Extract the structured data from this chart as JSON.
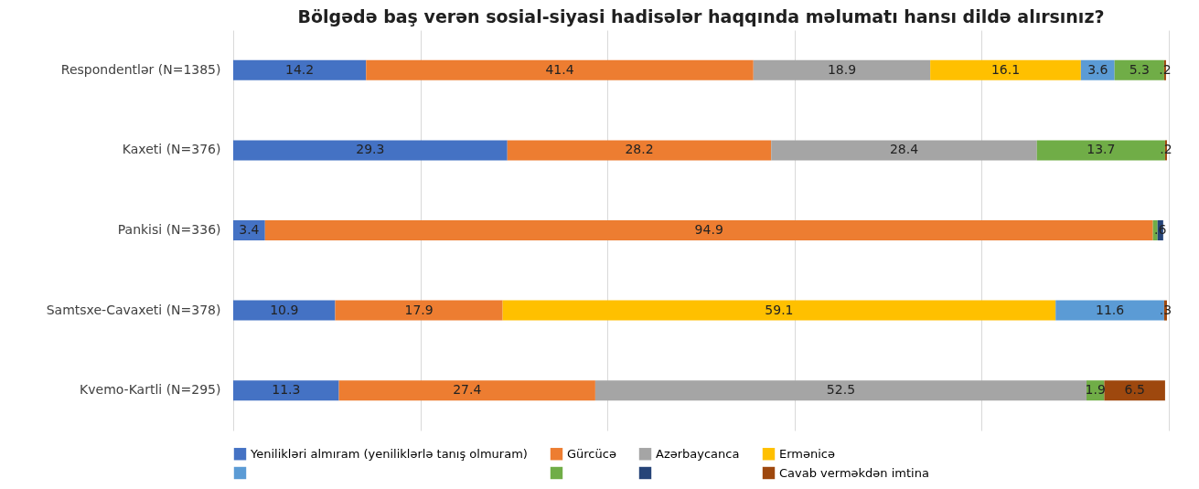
{
  "chart_data": {
    "type": "bar",
    "orientation": "horizontal",
    "stacked": true,
    "title": "Bölgədə baş verən sosial-siyasi hadisələr haqqında məlumatı hansı dildə alırsınız?",
    "categories": [
      "Respondentlər (N=1385)",
      "Kaxeti (N=376)",
      "Pankisi (N=336)",
      "Samtsxe-Cavaxeti (N=378)",
      "Kvemo-Kartli (N=295)"
    ],
    "xlim": [
      0,
      100
    ],
    "xticks": [
      {
        "value": 0,
        "label": null
      },
      {
        "value": 20,
        "label": null
      },
      {
        "value": 40,
        "label": null
      },
      {
        "value": 60,
        "label": null
      },
      {
        "value": 80,
        "label": null
      },
      {
        "value": 100,
        "label": null
      }
    ],
    "tick_labels": "y",
    "grid": "x",
    "legend": "bottom left",
    "series": [
      {
        "name": "Yenilikləri almıram (yeniliklərlə tanış olmuram)",
        "color": "#4472c4",
        "values": [
          14.2,
          29.3,
          3.4,
          10.9,
          11.3
        ],
        "value_labels": [
          "14.2",
          "29.3",
          "3.4",
          "10.9",
          "11.3"
        ]
      },
      {
        "name": "Gürcücə",
        "color": "#ed7d31",
        "values": [
          41.4,
          28.2,
          94.9,
          17.9,
          27.4
        ],
        "value_labels": [
          "41.4",
          "28.2",
          "94.9",
          "17.9",
          "27.4"
        ]
      },
      {
        "name": "Azərbaycanca",
        "color": "#a5a5a5",
        "values": [
          18.9,
          28.4,
          null,
          null,
          52.5
        ],
        "value_labels": [
          "18.9",
          "28.4",
          null,
          null,
          "52.5"
        ]
      },
      {
        "name": "Ermənicə",
        "color": "#ffc000",
        "values": [
          16.1,
          null,
          null,
          59.1,
          null
        ],
        "value_labels": [
          "16.1",
          null,
          null,
          "59.1",
          null
        ]
      },
      {
        "color": "#5b9bd5",
        "values": [
          3.6,
          null,
          null,
          11.6,
          null
        ],
        "value_labels": [
          "3.6",
          null,
          null,
          "11.6",
          null
        ]
      },
      {
        "color": "#70ad47",
        "values": [
          5.3,
          13.7,
          0.5,
          null,
          1.9
        ],
        "value_labels": [
          "5.3",
          "13.7",
          null,
          null,
          "1.9"
        ]
      },
      {
        "color": "#264478",
        "values": [
          null,
          null,
          0.6,
          null,
          null
        ],
        "value_labels": [
          null,
          null,
          ".6",
          null,
          null
        ]
      },
      {
        "name": "Cavab verməkdən imtina",
        "color": "#9e480e",
        "values": [
          0.2,
          0.2,
          null,
          0.3,
          6.5
        ],
        "value_labels": [
          ".2",
          ".2",
          null,
          ".3",
          "6.5"
        ]
      }
    ]
  }
}
